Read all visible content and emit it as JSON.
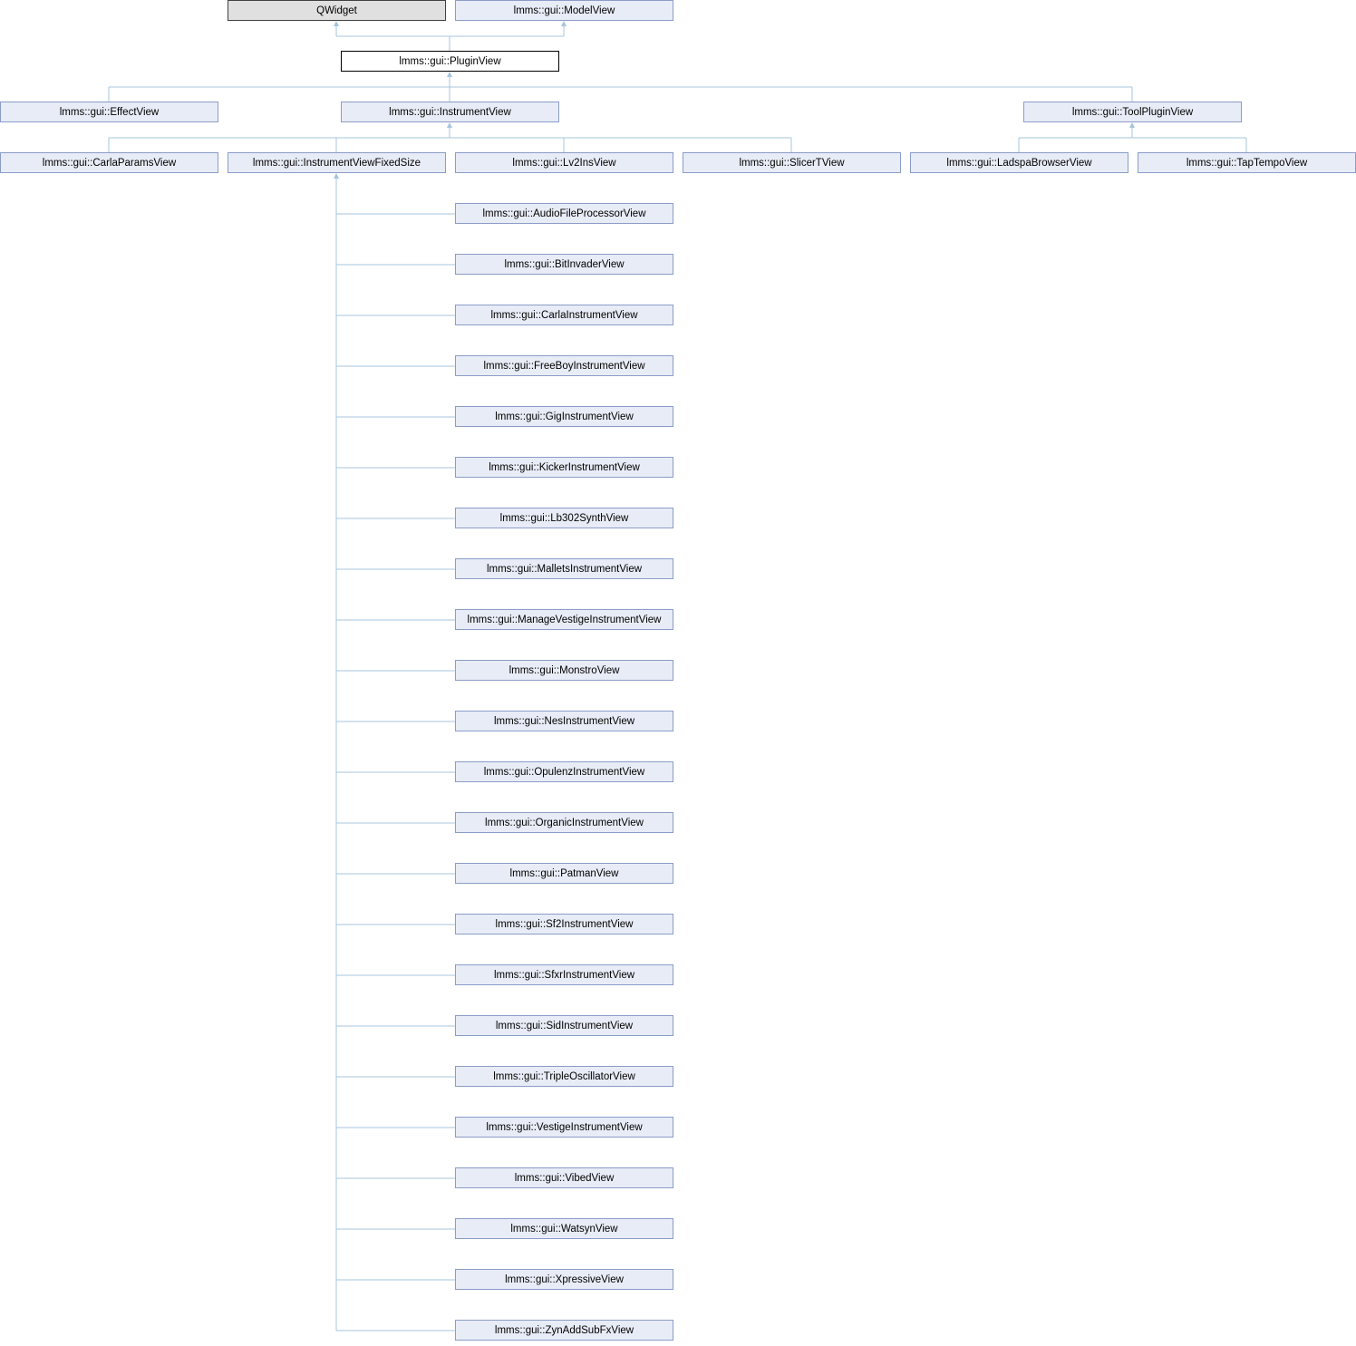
{
  "nodes": [
    {
      "label": "QWidget"
    },
    {
      "label": "lmms::gui::ModelView"
    },
    {
      "label": "lmms::gui::PluginView"
    },
    {
      "label": "lmms::gui::EffectView"
    },
    {
      "label": "lmms::gui::InstrumentView"
    },
    {
      "label": "lmms::gui::ToolPluginView"
    },
    {
      "label": "lmms::gui::CarlaParamsView"
    },
    {
      "label": "lmms::gui::InstrumentViewFixedSize"
    },
    {
      "label": "lmms::gui::Lv2InsView"
    },
    {
      "label": "lmms::gui::SlicerTView"
    },
    {
      "label": "lmms::gui::LadspaBrowserView"
    },
    {
      "label": "lmms::gui::TapTempoView"
    },
    {
      "label": "lmms::gui::AudioFileProcessorView"
    },
    {
      "label": "lmms::gui::BitInvaderView"
    },
    {
      "label": "lmms::gui::CarlaInstrumentView"
    },
    {
      "label": "lmms::gui::FreeBoyInstrumentView"
    },
    {
      "label": "lmms::gui::GigInstrumentView"
    },
    {
      "label": "lmms::gui::KickerInstrumentView"
    },
    {
      "label": "lmms::gui::Lb302SynthView"
    },
    {
      "label": "lmms::gui::MalletsInstrumentView"
    },
    {
      "label": "lmms::gui::ManageVestigeInstrumentView"
    },
    {
      "label": "lmms::gui::MonstroView"
    },
    {
      "label": "lmms::gui::NesInstrumentView"
    },
    {
      "label": "lmms::gui::OpulenzInstrumentView"
    },
    {
      "label": "lmms::gui::OrganicInstrumentView"
    },
    {
      "label": "lmms::gui::PatmanView"
    },
    {
      "label": "lmms::gui::Sf2InstrumentView"
    },
    {
      "label": "lmms::gui::SfxrInstrumentView"
    },
    {
      "label": "lmms::gui::SidInstrumentView"
    },
    {
      "label": "lmms::gui::TripleOscillatorView"
    },
    {
      "label": "lmms::gui::VestigeInstrumentView"
    },
    {
      "label": "lmms::gui::VibedView"
    },
    {
      "label": "lmms::gui::WatsynView"
    },
    {
      "label": "lmms::gui::XpressiveView"
    },
    {
      "label": "lmms::gui::ZynAddSubFxView"
    }
  ]
}
